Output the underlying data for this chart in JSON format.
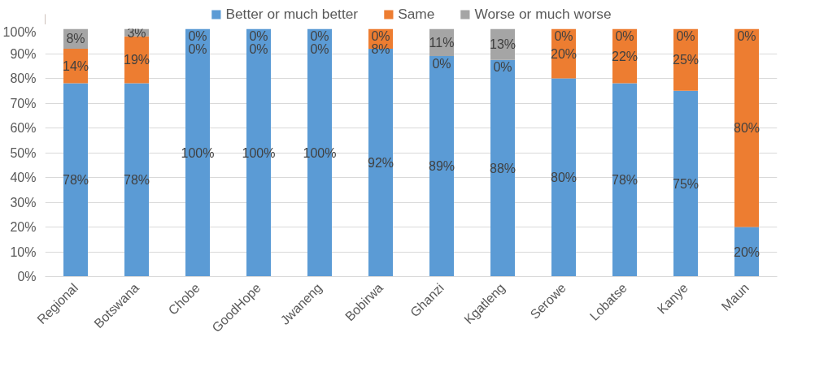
{
  "chart_data": {
    "type": "bar",
    "stacked": true,
    "categories": [
      "Regional",
      "Botswana",
      "Chobe",
      "GoodHope",
      "Jwaneng",
      "Bobirwa",
      "Ghanzi",
      "Kgatleng",
      "Serowe",
      "Lobatse",
      "Kanye",
      "Maun"
    ],
    "series": [
      {
        "name": "Better or much better",
        "color": "#5b9bd5",
        "values": [
          78,
          78,
          100,
          100,
          100,
          92,
          89,
          87.5,
          80,
          78,
          75,
          20
        ],
        "value_labels": [
          "78%",
          "78%",
          "100%",
          "100%",
          "100%",
          "92%",
          "89%",
          "88%",
          "80%",
          "78%",
          "75%",
          "20%"
        ]
      },
      {
        "name": "Same",
        "color": "#ed7d31",
        "values": [
          14,
          19,
          0,
          0,
          0,
          8,
          0,
          0,
          20,
          22,
          25,
          80
        ],
        "value_labels": [
          "14%",
          "19%",
          "0%",
          "0%",
          "0%",
          "8%",
          "0%",
          "0%",
          "20%",
          "22%",
          "25%",
          "80%"
        ]
      },
      {
        "name": "Worse or much worse",
        "color": "#a5a5a5",
        "values": [
          8,
          3,
          0,
          0,
          0,
          0,
          11,
          12.5,
          0,
          0,
          0,
          0
        ],
        "value_labels": [
          "8%",
          "3%",
          "0%",
          "0%",
          "0%",
          "0%",
          "11%",
          "13%",
          "0%",
          "0%",
          "0%",
          "0%"
        ]
      }
    ],
    "ylim": [
      0,
      100
    ],
    "yticks": [
      {
        "value": 0,
        "label": "0%"
      },
      {
        "value": 10,
        "label": "10%"
      },
      {
        "value": 20,
        "label": "20%"
      },
      {
        "value": 30,
        "label": "30%"
      },
      {
        "value": 40,
        "label": "40%"
      },
      {
        "value": 50,
        "label": "50%"
      },
      {
        "value": 60,
        "label": "60%"
      },
      {
        "value": 70,
        "label": "70%"
      },
      {
        "value": 80,
        "label": "80%"
      },
      {
        "value": 90,
        "label": "90%"
      },
      {
        "value": 100,
        "label": "100%"
      }
    ],
    "grid": "y",
    "legend": "top"
  }
}
